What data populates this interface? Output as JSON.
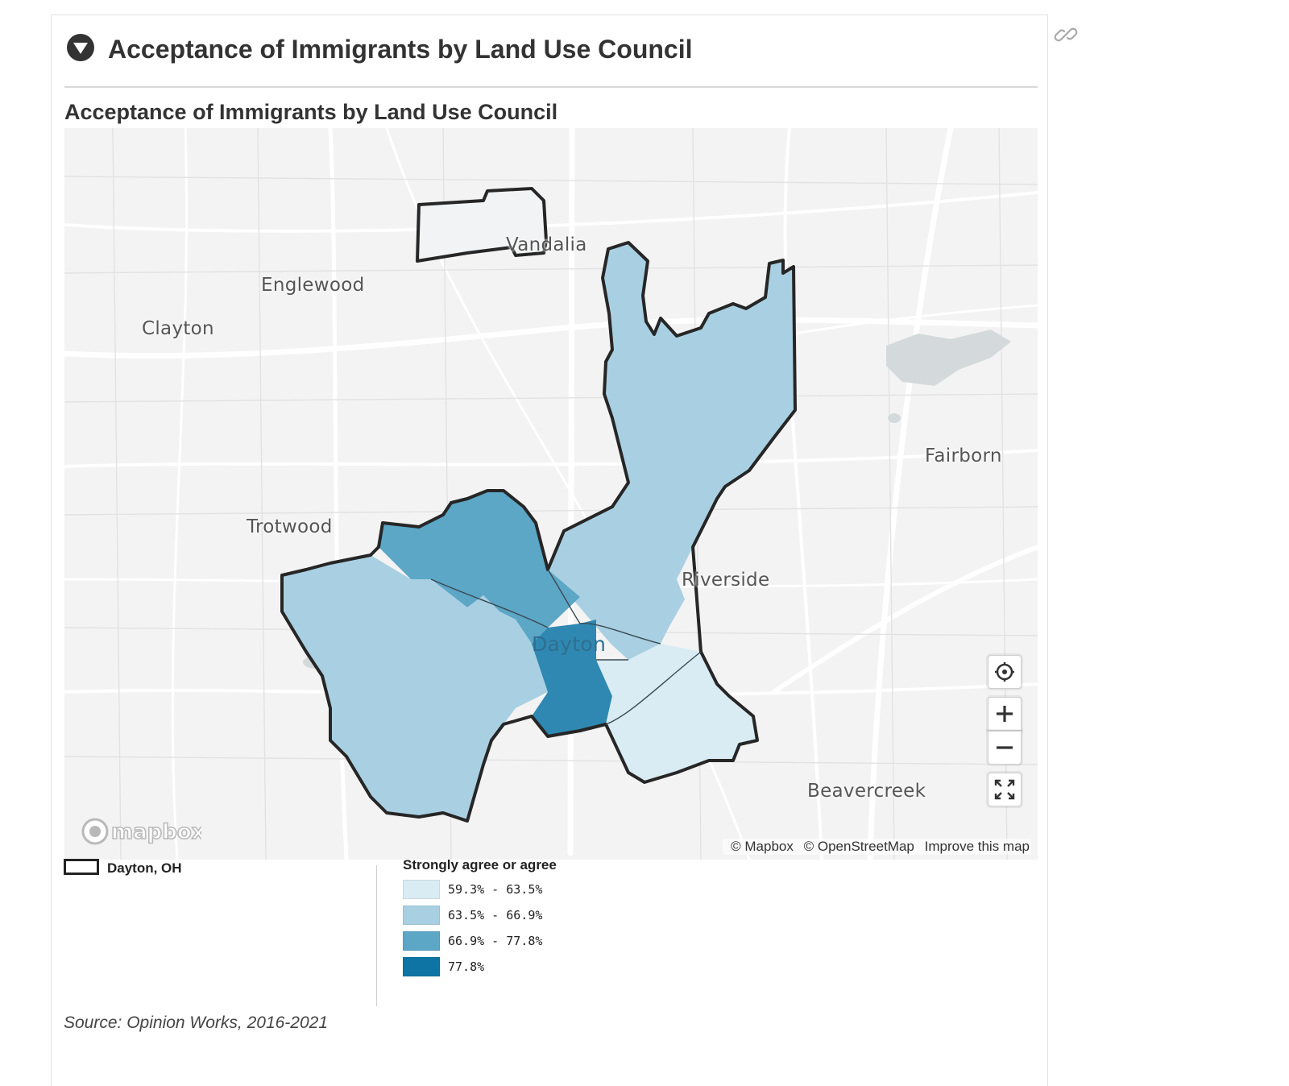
{
  "header": {
    "title": "Acceptance of Immigrants by Land Use Council"
  },
  "map_title": "Acceptance of Immigrants by Land Use Council",
  "map": {
    "place_labels": {
      "vandalia": "Vandalia",
      "englewood": "Englewood",
      "clayton": "Clayton",
      "fairborn": "Fairborn",
      "trotwood": "Trotwood",
      "riverside": "Riverside",
      "dayton": "Dayton",
      "beavercreek": "Beavercreek"
    },
    "attribution": {
      "mapbox": "© Mapbox",
      "osm": "© OpenStreetMap",
      "improve": "Improve this map"
    },
    "logo_text": "mapbox",
    "regions": [
      {
        "name": "Northwest",
        "class": "66.9% - 77.8%",
        "color": "#5ca6c6"
      },
      {
        "name": "Northeast",
        "class": "63.5% - 66.9%",
        "color": "#a9d0e2"
      },
      {
        "name": "Southwest",
        "class": "63.5% - 66.9%",
        "color": "#a9d0e2"
      },
      {
        "name": "Downtown",
        "class": "77.8%",
        "color": "#2f88b2"
      },
      {
        "name": "Southeast",
        "class": "59.3% - 63.5%",
        "color": "#d9ebf3"
      }
    ]
  },
  "legend": {
    "boundary_label": "Dayton, OH",
    "title": "Strongly agree or agree",
    "items": [
      {
        "label": "59.3% - 63.5%",
        "color": "#d9ebf3"
      },
      {
        "label": "63.5% - 66.9%",
        "color": "#a9d0e2"
      },
      {
        "label": "66.9% - 77.8%",
        "color": "#5ca6c6"
      },
      {
        "label": "77.8%",
        "color": "#0e74a4"
      }
    ]
  },
  "source": "Source: Opinion Works, 2016-2021",
  "icons": {
    "link": "link-icon",
    "toggle": "chevron-down-icon",
    "locate": "crosshair-icon",
    "zoom_in": "plus-icon",
    "zoom_out": "minus-icon",
    "fullscreen": "expand-icon"
  }
}
